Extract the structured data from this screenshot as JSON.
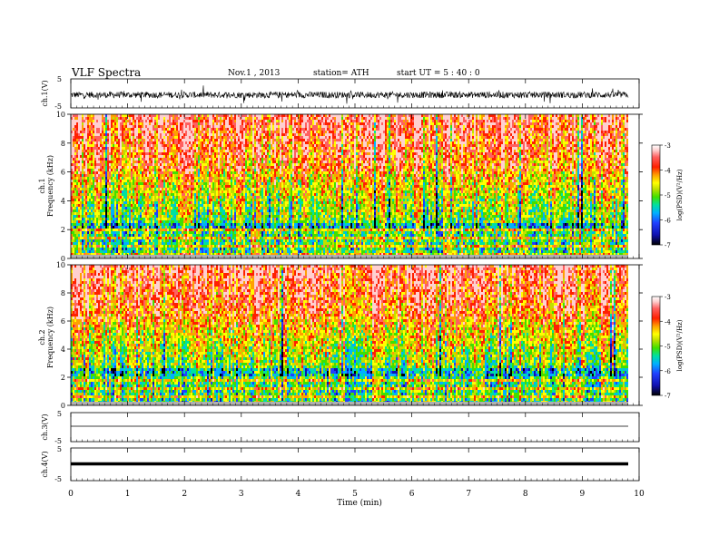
{
  "header": {
    "title": "VLF  Spectra",
    "date": "Nov.1  , 2013",
    "station": "station= ATH",
    "start": "start  UT  =   5  : 40 : 0"
  },
  "chart_data": [
    {
      "type": "line",
      "panel": "ch1-waveform",
      "ylabel": "ch.1(V)",
      "ylim": [
        -5,
        5
      ],
      "yticks": [
        "5",
        "-5"
      ],
      "xlim": [
        0,
        10
      ],
      "note_values": "dense noisy waveform centered near -0.5 V with amplitude about ±1.5 V over 0–9.8 min"
    },
    {
      "type": "heatmap",
      "panel": "ch1-spectrogram",
      "ylabel_top": "ch.1",
      "ylabel": "Frequency  (kHz)",
      "ylim": [
        0,
        10
      ],
      "yticks": [
        "0",
        "2",
        "4",
        "6",
        "8",
        "10"
      ],
      "xlim": [
        0,
        10
      ],
      "colorbar": {
        "label": "log(PSD)(V²/Hz)",
        "range": [
          -7,
          -3
        ],
        "ticks": [
          "-3",
          "-4",
          "-5",
          "-6",
          "-7"
        ]
      },
      "note_values": "high PSD (-3 to -4) at 6–10 kHz; mid (-5) at 2–6 kHz; low (-6 to -7) streaks near 2.5–4 kHz; horizontal line structure below 2 kHz"
    },
    {
      "type": "heatmap",
      "panel": "ch2-spectrogram",
      "ylabel_top": "ch.2",
      "ylabel": "Frequency  (kHz)",
      "ylim": [
        0,
        10
      ],
      "yticks": [
        "0",
        "2",
        "4",
        "6",
        "8",
        "10"
      ],
      "xlim": [
        0,
        10
      ],
      "colorbar": {
        "label": "log(PSD)(V²/Hz)",
        "range": [
          -7,
          -3
        ],
        "ticks": [
          "-3",
          "-4",
          "-5",
          "-6",
          "-7"
        ]
      }
    },
    {
      "type": "line",
      "panel": "ch3-waveform",
      "ylabel": "ch.3(V)",
      "ylim": [
        -5,
        5
      ],
      "yticks": [
        "5",
        "-5"
      ],
      "xlim": [
        0,
        10
      ],
      "values_note": "flat line near 0 V"
    },
    {
      "type": "line",
      "panel": "ch4-waveform",
      "ylabel": "ch.4(V)",
      "ylim": [
        -5,
        5
      ],
      "yticks": [
        "5",
        "-5"
      ],
      "xlim": [
        0,
        10
      ],
      "xlabel": "Time  (min)",
      "xticks": [
        "0",
        "1",
        "2",
        "3",
        "4",
        "5",
        "6",
        "7",
        "8",
        "9",
        "10"
      ],
      "values_note": "thick flat line near 0 V"
    }
  ],
  "colors": {
    "scale": [
      "#000000",
      "#1010b0",
      "#2040ff",
      "#00b0ff",
      "#00e0a0",
      "#40e000",
      "#c0e000",
      "#ffff00",
      "#ffa000",
      "#ff2000",
      "#ff6060",
      "#ffd0d0",
      "#ffffff"
    ]
  }
}
